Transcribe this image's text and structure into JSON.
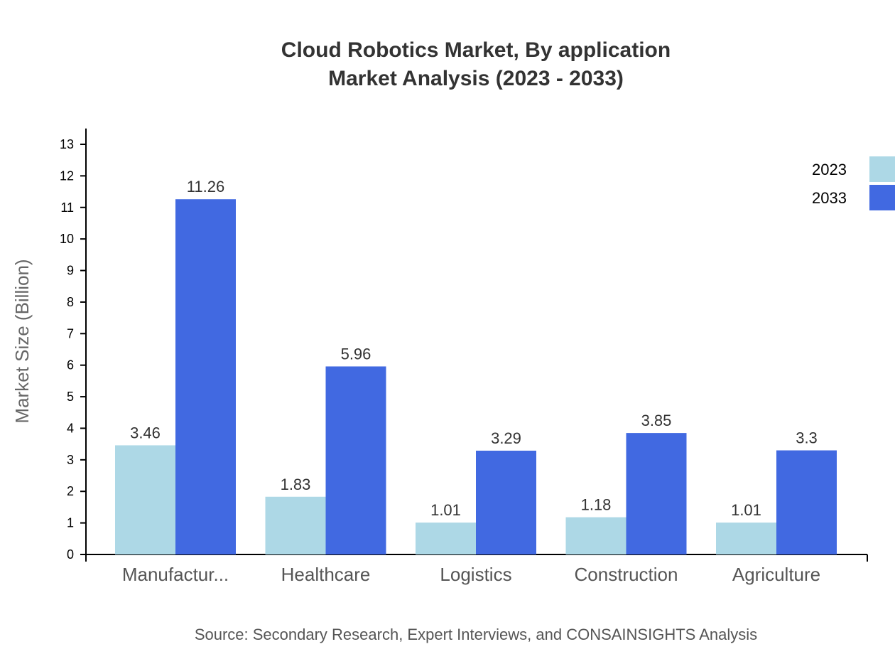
{
  "chart_data": {
    "type": "bar",
    "title": "Cloud Robotics Market, By application",
    "subtitle": "Market Analysis (2023 - 2033)",
    "xlabel": "",
    "ylabel": "Market Size (Billion)",
    "ylim": [
      0,
      13.5
    ],
    "yticks": [
      0,
      1,
      2,
      3,
      4,
      5,
      6,
      7,
      8,
      9,
      10,
      11,
      12,
      13
    ],
    "categories": [
      "Manufactur...",
      "Healthcare",
      "Logistics",
      "Construction",
      "Agriculture"
    ],
    "series": [
      {
        "name": "2023",
        "color": "#add8e6",
        "values": [
          3.46,
          1.83,
          1.01,
          1.18,
          1.01
        ]
      },
      {
        "name": "2033",
        "color": "#4169e1",
        "values": [
          11.26,
          5.96,
          3.29,
          3.85,
          3.3
        ]
      }
    ],
    "grid": false,
    "legend": "top-right",
    "source": "Source: Secondary Research, Expert Interviews, and CONSAINSIGHTS Analysis"
  }
}
